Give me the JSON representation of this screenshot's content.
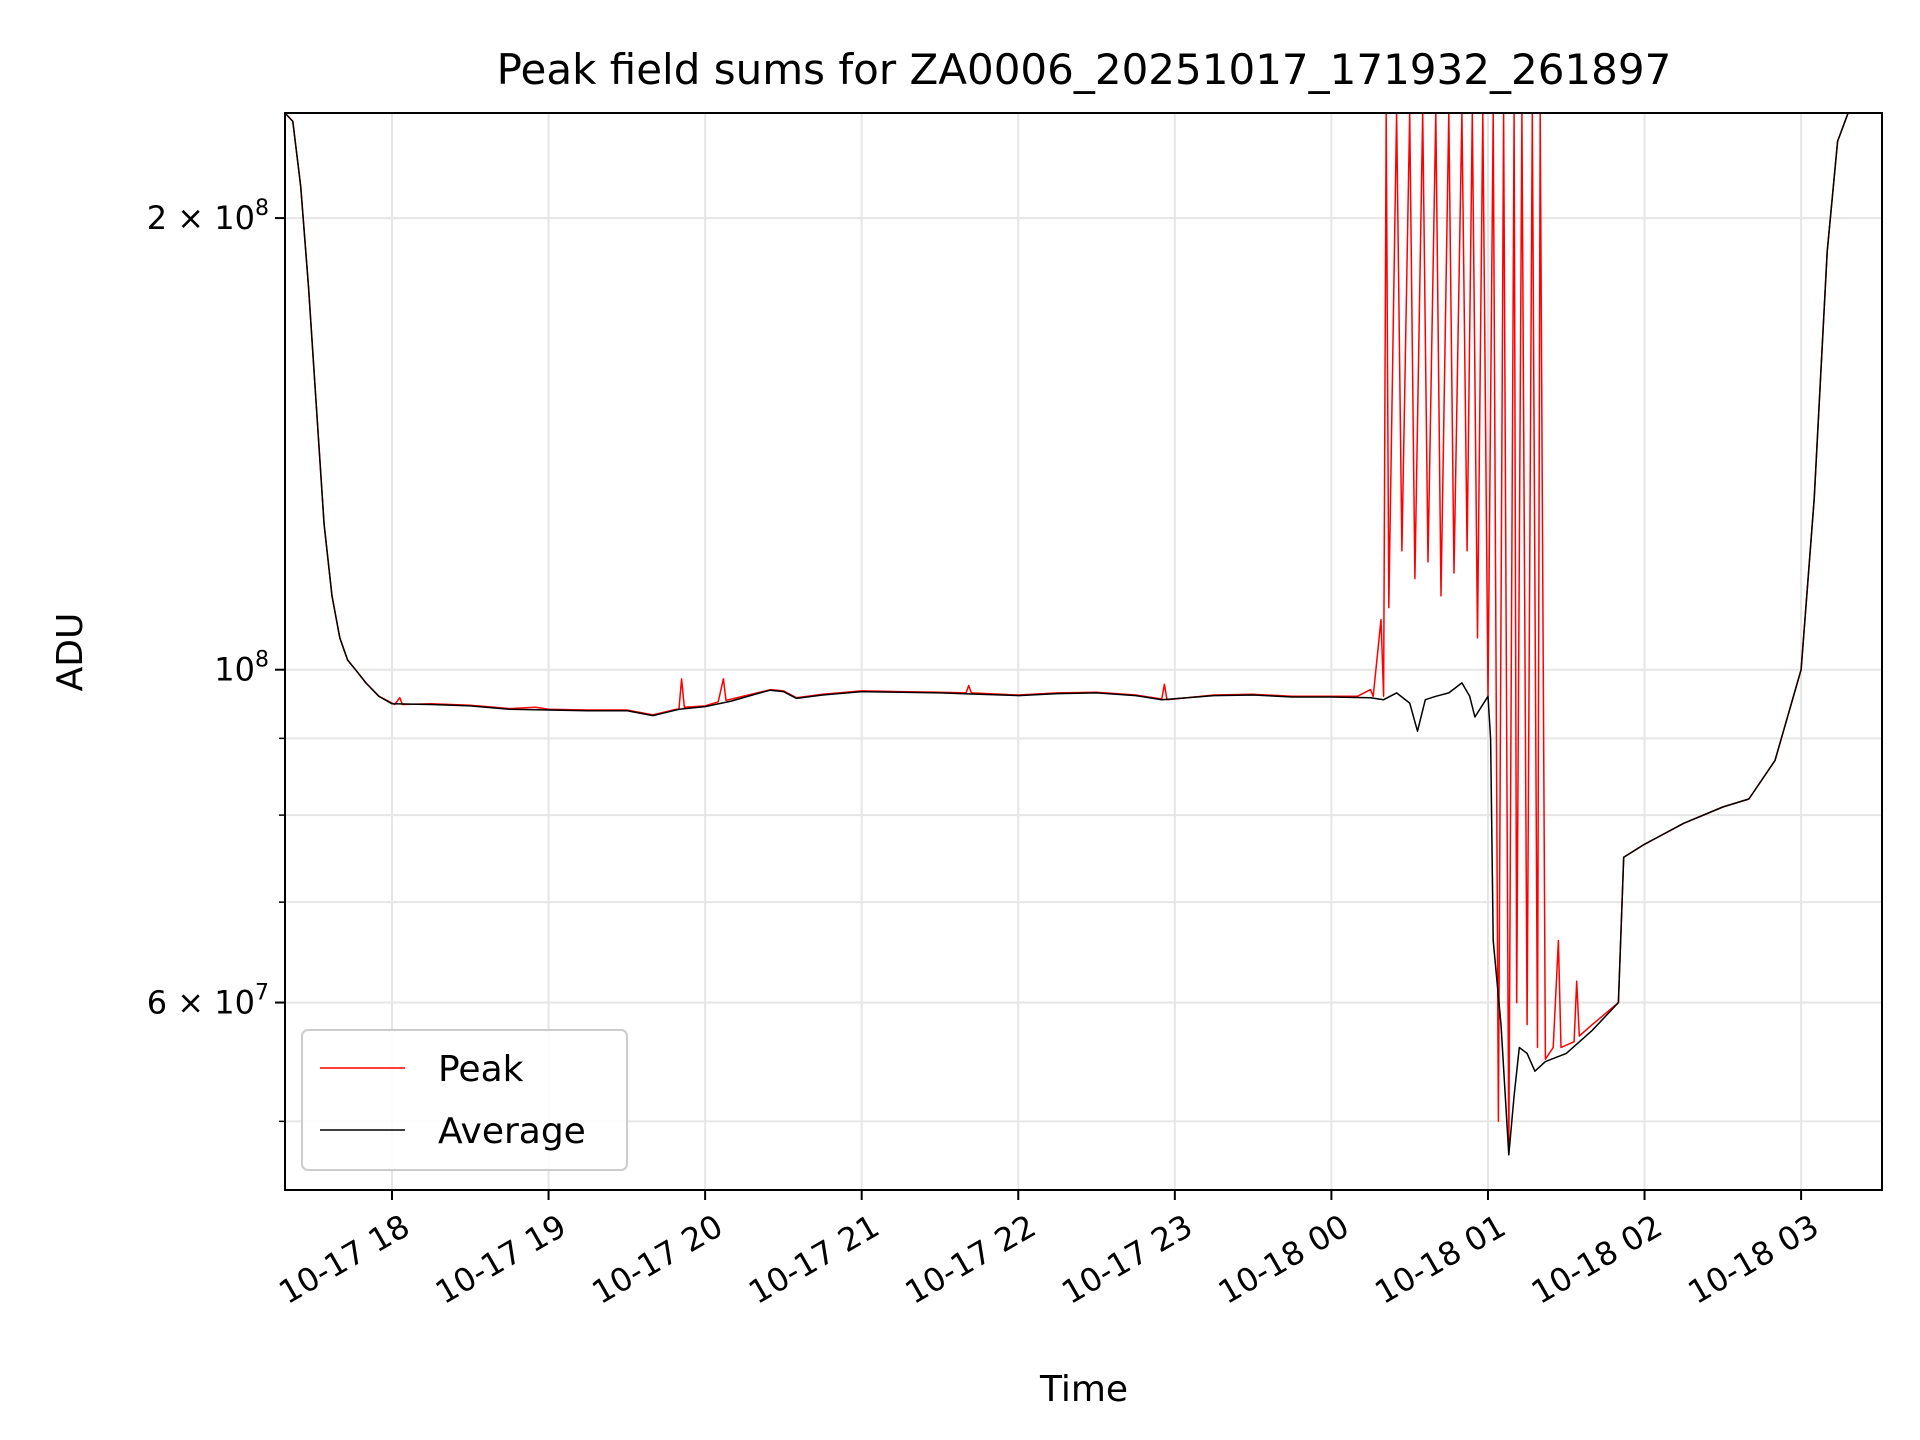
{
  "chart_data": {
    "type": "line",
    "title": "Peak field sums for ZA0006_20251017_171932_261897",
    "xlabel": "Time",
    "ylabel": "ADU",
    "y_scale": "log",
    "ylim": [
      45000000,
      235000000
    ],
    "xlim": [
      "2025-10-17 17:19",
      "2025-10-18 03:31"
    ],
    "grid": true,
    "legend_position": "lower-left",
    "x_ticks": [
      {
        "t": "2025-10-17 18:00",
        "label": "10-17 18"
      },
      {
        "t": "2025-10-17 19:00",
        "label": "10-17 19"
      },
      {
        "t": "2025-10-17 20:00",
        "label": "10-17 20"
      },
      {
        "t": "2025-10-17 21:00",
        "label": "10-17 21"
      },
      {
        "t": "2025-10-17 22:00",
        "label": "10-17 22"
      },
      {
        "t": "2025-10-17 23:00",
        "label": "10-17 23"
      },
      {
        "t": "2025-10-18 00:00",
        "label": "10-18 00"
      },
      {
        "t": "2025-10-18 01:00",
        "label": "10-18 01"
      },
      {
        "t": "2025-10-18 02:00",
        "label": "10-18 02"
      },
      {
        "t": "2025-10-18 03:00",
        "label": "10-18 03"
      }
    ],
    "y_ticks_major": [
      {
        "value": 100000000,
        "base": "10",
        "exp": "8"
      },
      {
        "value": 200000000,
        "base": "2 × 10",
        "exp": "8"
      },
      {
        "value": 60000000,
        "base": "6 × 10",
        "exp": "7"
      }
    ],
    "y_ticks_minor": [
      50000000,
      70000000,
      80000000,
      90000000
    ],
    "series": [
      {
        "name": "Peak",
        "color": "#ff0000",
        "points": [
          [
            "2025-10-17 17:19",
            235000000
          ],
          [
            "2025-10-17 17:22",
            232000000
          ],
          [
            "2025-10-17 17:25",
            210000000
          ],
          [
            "2025-10-17 17:28",
            180000000
          ],
          [
            "2025-10-17 17:31",
            150000000
          ],
          [
            "2025-10-17 17:34",
            125000000
          ],
          [
            "2025-10-17 17:37",
            112000000
          ],
          [
            "2025-10-17 17:40",
            105000000
          ],
          [
            "2025-10-17 17:43",
            101500000
          ],
          [
            "2025-10-17 17:46",
            100000000
          ],
          [
            "2025-10-17 17:50",
            98000000
          ],
          [
            "2025-10-17 17:55",
            96000000
          ],
          [
            "2025-10-17 18:00",
            95000000
          ],
          [
            "2025-10-17 18:01",
            94800000
          ],
          [
            "2025-10-17 18:03",
            95800000
          ],
          [
            "2025-10-17 18:04",
            94800000
          ],
          [
            "2025-10-17 18:15",
            94900000
          ],
          [
            "2025-10-17 18:30",
            94700000
          ],
          [
            "2025-10-17 18:45",
            94200000
          ],
          [
            "2025-10-17 18:55",
            94400000
          ],
          [
            "2025-10-17 19:00",
            94100000
          ],
          [
            "2025-10-17 19:15",
            94000000
          ],
          [
            "2025-10-17 19:30",
            94000000
          ],
          [
            "2025-10-17 19:40",
            93300000
          ],
          [
            "2025-10-17 19:50",
            94200000
          ],
          [
            "2025-10-17 19:51",
            98600000
          ],
          [
            "2025-10-17 19:52",
            94400000
          ],
          [
            "2025-10-17 20:00",
            94600000
          ],
          [
            "2025-10-17 20:05",
            95200000
          ],
          [
            "2025-10-17 20:07",
            98600000
          ],
          [
            "2025-10-17 20:08",
            95400000
          ],
          [
            "2025-10-17 20:20",
            96500000
          ],
          [
            "2025-10-17 20:25",
            97000000
          ],
          [
            "2025-10-17 20:30",
            96800000
          ],
          [
            "2025-10-17 20:35",
            95800000
          ],
          [
            "2025-10-17 20:45",
            96300000
          ],
          [
            "2025-10-17 21:00",
            96800000
          ],
          [
            "2025-10-17 21:15",
            96700000
          ],
          [
            "2025-10-17 21:30",
            96600000
          ],
          [
            "2025-10-17 21:40",
            96500000
          ],
          [
            "2025-10-17 21:41",
            97600000
          ],
          [
            "2025-10-17 21:42",
            96500000
          ],
          [
            "2025-10-17 22:00",
            96200000
          ],
          [
            "2025-10-17 22:15",
            96500000
          ],
          [
            "2025-10-17 22:30",
            96600000
          ],
          [
            "2025-10-17 22:45",
            96200000
          ],
          [
            "2025-10-17 22:55",
            95600000
          ],
          [
            "2025-10-17 22:56",
            97800000
          ],
          [
            "2025-10-17 22:57",
            95500000
          ],
          [
            "2025-10-17 23:15",
            96200000
          ],
          [
            "2025-10-17 23:30",
            96300000
          ],
          [
            "2025-10-17 23:45",
            96000000
          ],
          [
            "2025-10-18 00:00",
            96000000
          ],
          [
            "2025-10-18 00:10",
            96000000
          ],
          [
            "2025-10-18 00:15",
            97000000
          ],
          [
            "2025-10-18 00:16",
            96000000
          ],
          [
            "2025-10-18 00:19",
            108000000
          ],
          [
            "2025-10-18 00:20",
            96000000
          ],
          [
            "2025-10-18 00:21",
            235000000
          ],
          [
            "2025-10-18 00:22",
            110000000
          ],
          [
            "2025-10-18 00:25",
            235000000
          ],
          [
            "2025-10-18 00:27",
            120000000
          ],
          [
            "2025-10-18 00:30",
            235000000
          ],
          [
            "2025-10-18 00:32",
            115000000
          ],
          [
            "2025-10-18 00:35",
            235000000
          ],
          [
            "2025-10-18 00:37",
            118000000
          ],
          [
            "2025-10-18 00:40",
            235000000
          ],
          [
            "2025-10-18 00:42",
            112000000
          ],
          [
            "2025-10-18 00:45",
            235000000
          ],
          [
            "2025-10-18 00:47",
            116000000
          ],
          [
            "2025-10-18 00:50",
            235000000
          ],
          [
            "2025-10-18 00:52",
            120000000
          ],
          [
            "2025-10-18 00:54",
            235000000
          ],
          [
            "2025-10-18 00:56",
            105000000
          ],
          [
            "2025-10-18 00:58",
            235000000
          ],
          [
            "2025-10-18 01:00",
            96000000
          ],
          [
            "2025-10-18 01:02",
            235000000
          ],
          [
            "2025-10-18 01:04",
            50000000
          ],
          [
            "2025-10-18 01:06",
            235000000
          ],
          [
            "2025-10-18 01:08",
            47500000
          ],
          [
            "2025-10-18 01:10",
            235000000
          ],
          [
            "2025-10-18 01:11",
            60000000
          ],
          [
            "2025-10-18 01:13",
            235000000
          ],
          [
            "2025-10-18 01:15",
            58000000
          ],
          [
            "2025-10-18 01:17",
            235000000
          ],
          [
            "2025-10-18 01:19",
            56000000
          ],
          [
            "2025-10-18 01:20",
            235000000
          ],
          [
            "2025-10-18 01:22",
            55000000
          ],
          [
            "2025-10-18 01:25",
            56000000
          ],
          [
            "2025-10-18 01:27",
            66000000
          ],
          [
            "2025-10-18 01:28",
            56000000
          ],
          [
            "2025-10-18 01:33",
            56500000
          ],
          [
            "2025-10-18 01:34",
            62000000
          ],
          [
            "2025-10-18 01:35",
            57000000
          ],
          [
            "2025-10-18 01:40",
            58000000
          ],
          [
            "2025-10-18 01:50",
            60000000
          ],
          [
            "2025-10-18 01:52",
            75000000
          ],
          [
            "2025-10-18 02:00",
            76500000
          ],
          [
            "2025-10-18 02:15",
            79000000
          ],
          [
            "2025-10-18 02:30",
            81000000
          ],
          [
            "2025-10-18 02:40",
            82000000
          ],
          [
            "2025-10-18 02:50",
            87000000
          ],
          [
            "2025-10-18 03:00",
            100000000
          ],
          [
            "2025-10-18 03:05",
            130000000
          ],
          [
            "2025-10-18 03:10",
            190000000
          ],
          [
            "2025-10-18 03:14",
            225000000
          ],
          [
            "2025-10-18 03:18",
            235000000
          ],
          [
            "2025-10-18 03:31",
            235000000
          ]
        ]
      },
      {
        "name": "Average",
        "color": "#000000",
        "points": [
          [
            "2025-10-17 17:19",
            235000000
          ],
          [
            "2025-10-17 17:22",
            232000000
          ],
          [
            "2025-10-17 17:25",
            210000000
          ],
          [
            "2025-10-17 17:28",
            180000000
          ],
          [
            "2025-10-17 17:31",
            150000000
          ],
          [
            "2025-10-17 17:34",
            125000000
          ],
          [
            "2025-10-17 17:37",
            112000000
          ],
          [
            "2025-10-17 17:40",
            105000000
          ],
          [
            "2025-10-17 17:43",
            101500000
          ],
          [
            "2025-10-17 17:46",
            100000000
          ],
          [
            "2025-10-17 17:50",
            98000000
          ],
          [
            "2025-10-17 17:55",
            96000000
          ],
          [
            "2025-10-17 18:00",
            94900000
          ],
          [
            "2025-10-17 18:15",
            94800000
          ],
          [
            "2025-10-17 18:30",
            94600000
          ],
          [
            "2025-10-17 18:45",
            94100000
          ],
          [
            "2025-10-17 19:00",
            94000000
          ],
          [
            "2025-10-17 19:15",
            93900000
          ],
          [
            "2025-10-17 19:30",
            93900000
          ],
          [
            "2025-10-17 19:40",
            93200000
          ],
          [
            "2025-10-17 19:50",
            94100000
          ],
          [
            "2025-10-17 20:00",
            94500000
          ],
          [
            "2025-10-17 20:10",
            95300000
          ],
          [
            "2025-10-17 20:20",
            96400000
          ],
          [
            "2025-10-17 20:25",
            96900000
          ],
          [
            "2025-10-17 20:30",
            96700000
          ],
          [
            "2025-10-17 20:35",
            95700000
          ],
          [
            "2025-10-17 20:45",
            96200000
          ],
          [
            "2025-10-17 21:00",
            96700000
          ],
          [
            "2025-10-17 21:15",
            96600000
          ],
          [
            "2025-10-17 21:30",
            96500000
          ],
          [
            "2025-10-17 21:45",
            96300000
          ],
          [
            "2025-10-17 22:00",
            96100000
          ],
          [
            "2025-10-17 22:15",
            96400000
          ],
          [
            "2025-10-17 22:30",
            96500000
          ],
          [
            "2025-10-17 22:45",
            96100000
          ],
          [
            "2025-10-17 22:55",
            95500000
          ],
          [
            "2025-10-17 23:15",
            96100000
          ],
          [
            "2025-10-17 23:30",
            96200000
          ],
          [
            "2025-10-17 23:45",
            95900000
          ],
          [
            "2025-10-18 00:00",
            95900000
          ],
          [
            "2025-10-18 00:15",
            95800000
          ],
          [
            "2025-10-18 00:20",
            95500000
          ],
          [
            "2025-10-18 00:25",
            96500000
          ],
          [
            "2025-10-18 00:30",
            95000000
          ],
          [
            "2025-10-18 00:33",
            91000000
          ],
          [
            "2025-10-18 00:36",
            95500000
          ],
          [
            "2025-10-18 00:40",
            96000000
          ],
          [
            "2025-10-18 00:45",
            96500000
          ],
          [
            "2025-10-18 00:50",
            98000000
          ],
          [
            "2025-10-18 00:53",
            96000000
          ],
          [
            "2025-10-18 00:55",
            93000000
          ],
          [
            "2025-10-18 01:00",
            96000000
          ],
          [
            "2025-10-18 01:01",
            90000000
          ],
          [
            "2025-10-18 01:02",
            66000000
          ],
          [
            "2025-10-18 01:05",
            58000000
          ],
          [
            "2025-10-18 01:08",
            47500000
          ],
          [
            "2025-10-18 01:10",
            52000000
          ],
          [
            "2025-10-18 01:12",
            56000000
          ],
          [
            "2025-10-18 01:15",
            55500000
          ],
          [
            "2025-10-18 01:18",
            54000000
          ],
          [
            "2025-10-18 01:22",
            54800000
          ],
          [
            "2025-10-18 01:30",
            55500000
          ],
          [
            "2025-10-18 01:40",
            57500000
          ],
          [
            "2025-10-18 01:50",
            60000000
          ],
          [
            "2025-10-18 01:52",
            75000000
          ],
          [
            "2025-10-18 02:00",
            76500000
          ],
          [
            "2025-10-18 02:15",
            79000000
          ],
          [
            "2025-10-18 02:30",
            81000000
          ],
          [
            "2025-10-18 02:40",
            82000000
          ],
          [
            "2025-10-18 02:50",
            87000000
          ],
          [
            "2025-10-18 03:00",
            100000000
          ],
          [
            "2025-10-18 03:05",
            130000000
          ],
          [
            "2025-10-18 03:10",
            190000000
          ],
          [
            "2025-10-18 03:14",
            225000000
          ],
          [
            "2025-10-18 03:18",
            235000000
          ],
          [
            "2025-10-18 03:31",
            235000000
          ]
        ]
      }
    ]
  }
}
